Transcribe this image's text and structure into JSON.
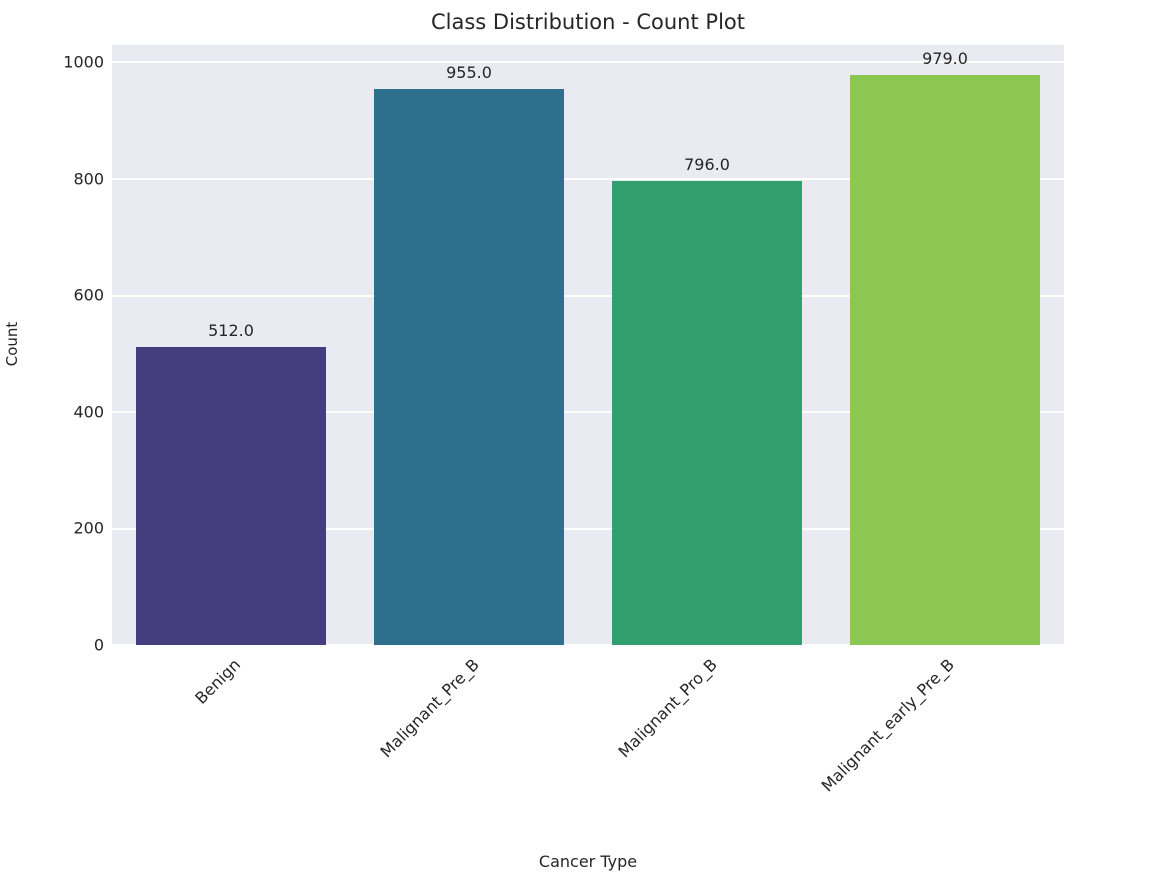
{
  "chart_data": {
    "type": "bar",
    "title": "Class Distribution - Count Plot",
    "xlabel": "Cancer Type",
    "ylabel": "Count",
    "categories": [
      "Benign",
      "Malignant_Pre_B",
      "Malignant_Pro_B",
      "Malignant_early_Pre_B"
    ],
    "values": [
      512,
      955,
      796,
      979
    ],
    "value_labels": [
      "512.0",
      "955.0",
      "796.0",
      "979.0"
    ],
    "bar_colors": [
      "#463d7e",
      "#2e6f8e",
      "#31a06e",
      "#8cc751"
    ],
    "yticks": [
      0,
      200,
      400,
      600,
      800,
      1000
    ],
    "ylim": [
      0,
      1030
    ],
    "grid": true,
    "grid_color": "#ffffff",
    "plot_background": "#eaeaf2",
    "legend": false
  }
}
